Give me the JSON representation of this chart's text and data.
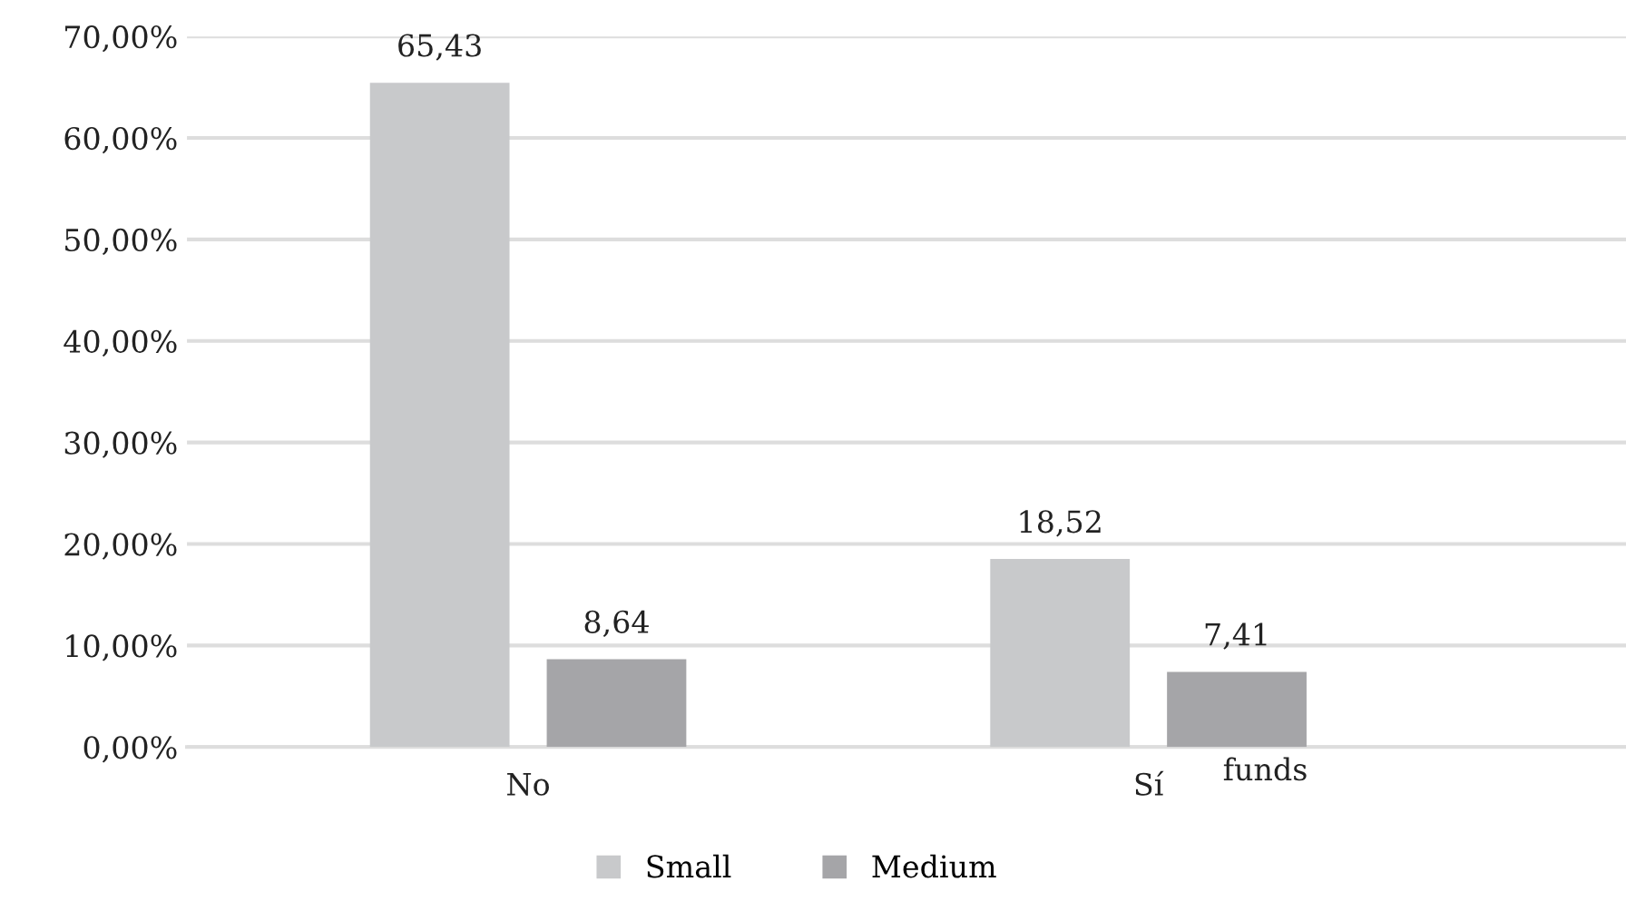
{
  "chart_data": {
    "type": "bar",
    "categories": [
      "No",
      "Sí"
    ],
    "series": [
      {
        "name": "Small",
        "color": "#c8c9cb",
        "values": [
          65.43,
          18.52
        ],
        "value_labels": [
          "65,43",
          "18,52"
        ]
      },
      {
        "name": "Medium",
        "color": "#a5a5a8",
        "values": [
          8.64,
          7.41
        ],
        "value_labels": [
          "8,64",
          "7,41"
        ]
      }
    ],
    "ylim": [
      0,
      70
    ],
    "yticks": [
      {
        "value": 0,
        "label": "0,00%"
      },
      {
        "value": 10,
        "label": "10,00%"
      },
      {
        "value": 20,
        "label": "20,00%"
      },
      {
        "value": 30,
        "label": "30,00%"
      },
      {
        "value": 40,
        "label": "40,00%"
      },
      {
        "value": 50,
        "label": "50,00%"
      },
      {
        "value": 60,
        "label": "60,00%"
      },
      {
        "value": 70,
        "label": "70,00%"
      }
    ],
    "grid": "y",
    "legend": "bottom",
    "annotations": [
      "funds"
    ]
  }
}
